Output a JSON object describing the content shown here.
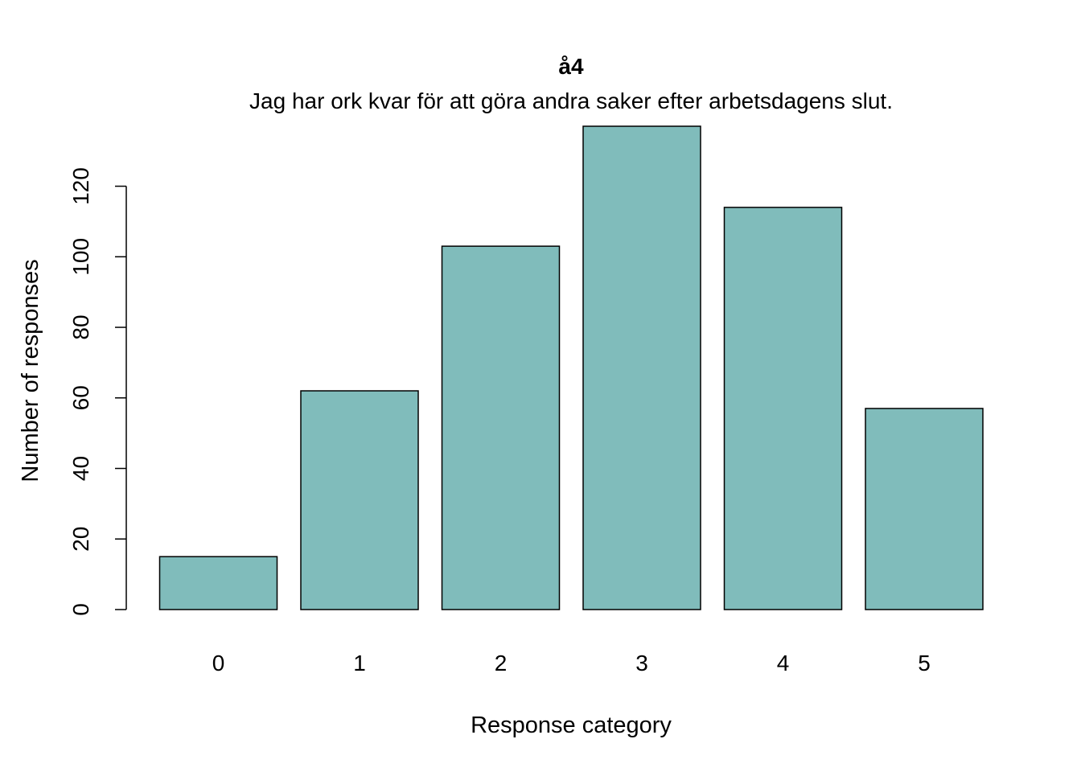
{
  "chart_data": {
    "type": "bar",
    "title": "å4",
    "subtitle": "Jag har ork kvar för att göra andra saker efter arbetsdagens slut.",
    "xlabel": "Response category",
    "ylabel": "Number of responses",
    "categories": [
      "0",
      "1",
      "2",
      "3",
      "4",
      "5"
    ],
    "values": [
      15,
      62,
      103,
      137,
      114,
      57
    ],
    "yticks": [
      "0",
      "20",
      "40",
      "60",
      "80",
      "100",
      "120"
    ],
    "ylim": [
      0,
      137
    ],
    "bar_color": "#80bcbb",
    "grid": false,
    "legend": false
  }
}
